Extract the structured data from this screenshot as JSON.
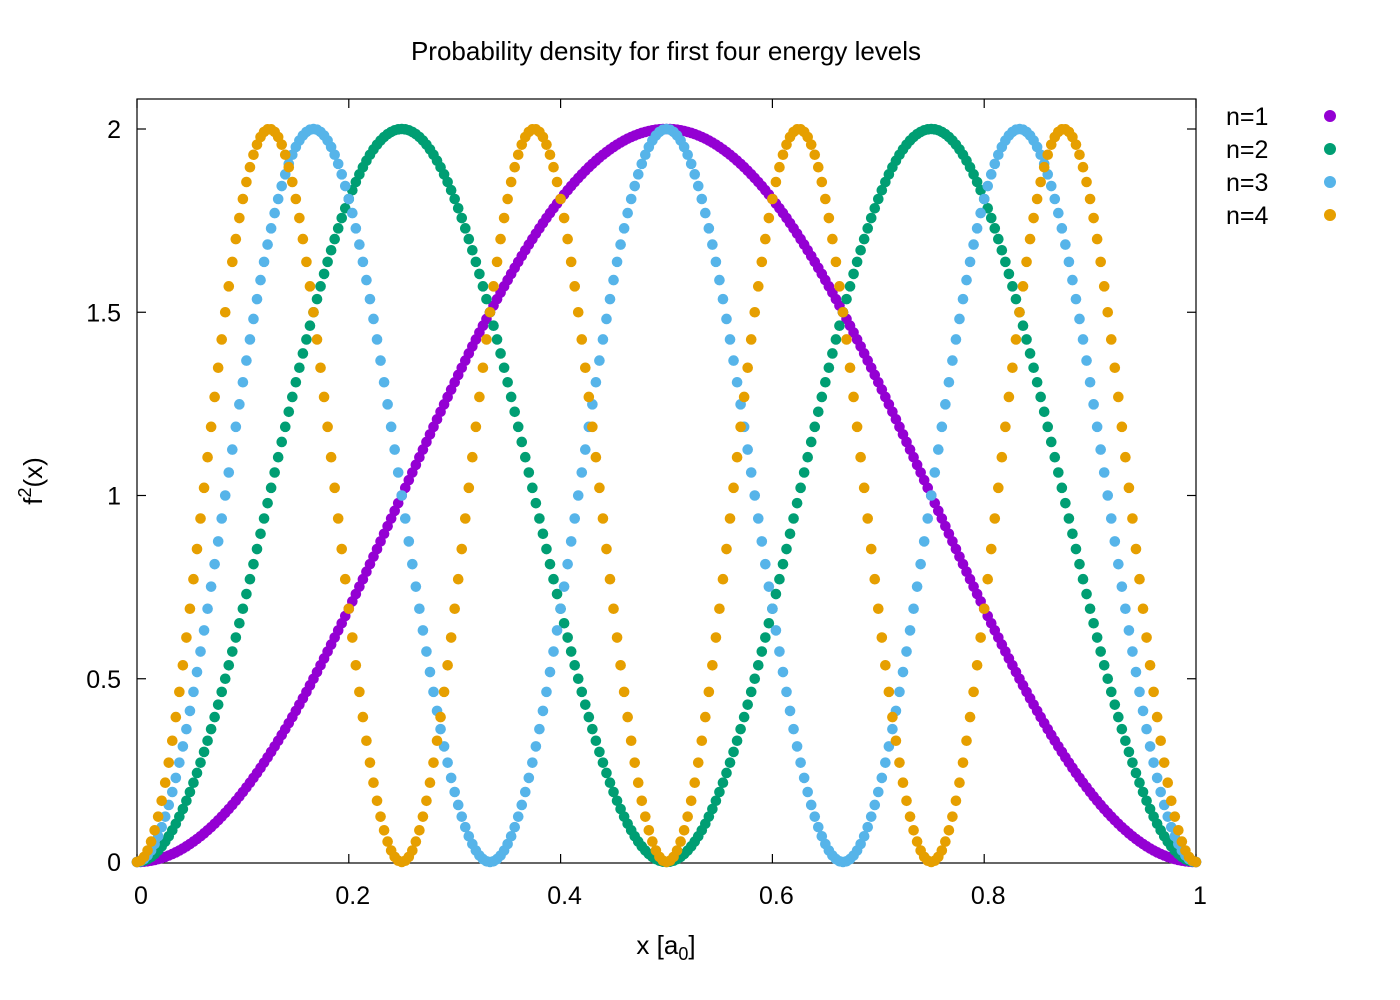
{
  "chart_data": {
    "type": "scatter",
    "title": "Probability density for first four energy levels",
    "xlabel": {
      "main": "x [a",
      "sub": "0",
      "end": "]"
    },
    "ylabel": {
      "main": "f",
      "sup": "2",
      "end": "(x)"
    },
    "xlim": [
      0,
      1
    ],
    "ylim": [
      0,
      2.08
    ],
    "xticks": [
      0,
      0.2,
      0.4,
      0.6,
      0.8,
      1
    ],
    "xtick_labels": [
      "0",
      "0.2",
      "0.4",
      "0.6",
      "0.8",
      "1"
    ],
    "yticks": [
      0,
      0.5,
      1,
      1.5,
      2
    ],
    "ytick_labels": [
      "0",
      "0.5",
      "1",
      "1.5",
      "2"
    ],
    "grid": false,
    "legend_position": "outside-top-right",
    "sampling": {
      "x_start": 0,
      "x_end": 1,
      "num_points": 301
    },
    "function": "f^2(x) = 2 sin^2(n*pi*x)",
    "series": [
      {
        "name": "n=1",
        "n": 1,
        "color": "#9400d3"
      },
      {
        "name": "n=2",
        "n": 2,
        "color": "#009e73"
      },
      {
        "name": "n=3",
        "n": 3,
        "color": "#56b4e9"
      },
      {
        "name": "n=4",
        "n": 4,
        "color": "#e69f00"
      }
    ]
  }
}
